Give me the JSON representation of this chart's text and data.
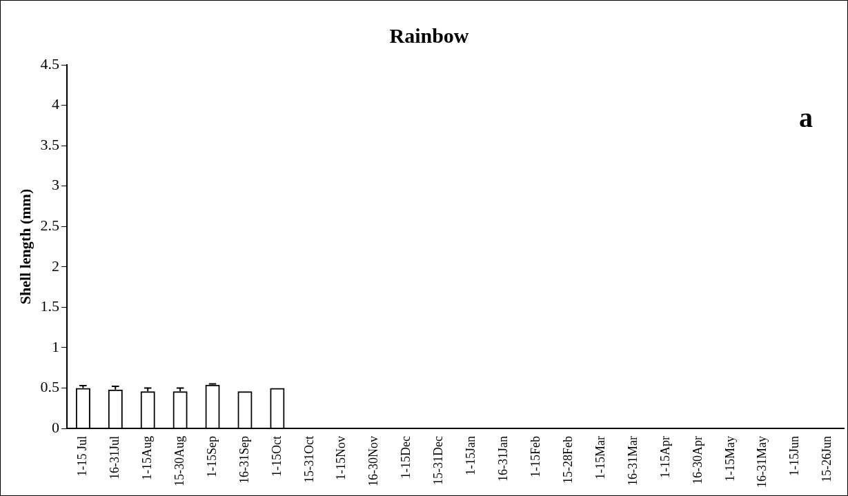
{
  "chart_data": {
    "type": "bar",
    "title": "Rainbow",
    "ylabel": "Shell length (mm)",
    "categories": [
      "1-15 Jul",
      "16-31Jul",
      "1-15Aug",
      "15-30Aug",
      "1-15Sep",
      "16-31Sep",
      "1-15Oct",
      "15-31Oct",
      "1-15Nov",
      "16-30Nov",
      "1-15Dec",
      "15-31Dec",
      "1-15Jan",
      "16-31Jan",
      "1-15Feb",
      "15-28Feb",
      "1-15Mar",
      "16-31Mar",
      "1-15Apr",
      "16-30Apr",
      "1-15May",
      "16-31May",
      "1-15Jun",
      "15-26Jun"
    ],
    "values": [
      0.5,
      0.48,
      0.46,
      0.46,
      0.54,
      0.46,
      0.5,
      null,
      null,
      null,
      null,
      null,
      null,
      null,
      null,
      null,
      null,
      null,
      null,
      null,
      null,
      null,
      null,
      null
    ],
    "errors": [
      [
        0.5,
        0.53
      ],
      [
        0.48,
        0.52
      ],
      [
        0.46,
        0.5
      ],
      [
        0.46,
        0.5
      ],
      [
        0.54,
        0.55
      ],
      null,
      null,
      null,
      null,
      null,
      null,
      null,
      null,
      null,
      null,
      null,
      null,
      null,
      null,
      null,
      null,
      null,
      null,
      null
    ],
    "color": "#000000",
    "ylim": [
      0,
      4.5
    ],
    "yticks": [
      0,
      0.5,
      1,
      1.5,
      2,
      2.5,
      3,
      3.5,
      4,
      4.5
    ],
    "grid": false,
    "legend": false,
    "annotations": [
      "a"
    ]
  }
}
